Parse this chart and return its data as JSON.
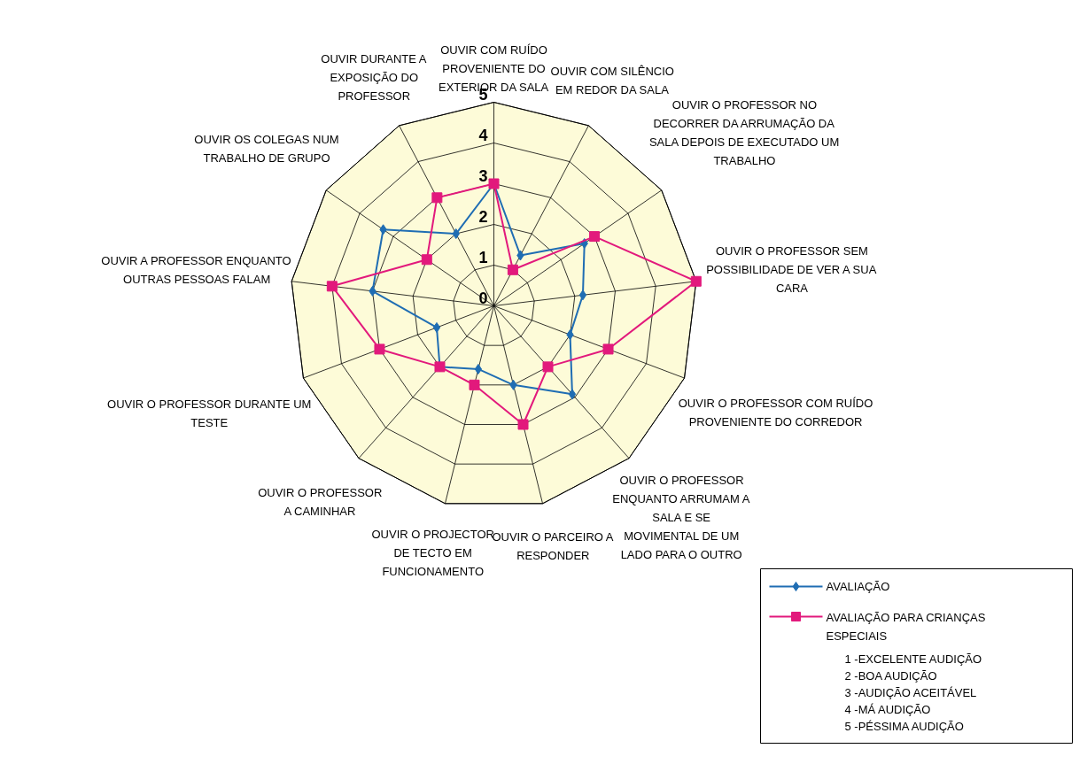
{
  "chart_data": {
    "type": "radar",
    "categories": [
      "OUVIR COM RUÍDO PROVENIENTE DO EXTERIOR DA SALA",
      "OUVIR COM SILÊNCIO EM REDOR DA SALA",
      "OUVIR O PROFESSOR NO DECORRER DA ARRUMAÇÃO DA SALA DEPOIS DE EXECUTADO UM TRABALHO",
      "OUVIR O PROFESSOR SEM POSSIBILIDADE DE VER A SUA CARA",
      "OUVIR O PROFESSOR COM RUÍDO PROVENIENTE DO CORREDOR",
      "OUVIR O PROFESSOR ENQUANTO ARRUMAM A SALA E SE MOVIMENTAL DE UM LADO PARA O OUTRO",
      "OUVIR O PARCEIRO A RESPONDER",
      "OUVIR O PROJECTOR DE TECTO EM FUNCIONAMENTO",
      "OUVIR O PROFESSOR A CAMINHAR",
      "OUVIR O PROFESSOR DURANTE UM TESTE",
      "OUVIR A PROFESSOR ENQUANTO OUTRAS PESSOAS FALAM",
      "OUVIR OS COLEGAS NUM TRABALHO DE GRUPO",
      "OUVIR DURANTE A EXPOSIÇÃO DO PROFESSOR"
    ],
    "series": [
      {
        "name": "AVALIAÇÃO",
        "color": "#1f6db3",
        "marker": "diamond",
        "values": [
          3,
          1.4,
          2.7,
          2.2,
          2,
          2.9,
          2,
          1.6,
          2,
          1.5,
          3,
          3.3,
          2
        ]
      },
      {
        "name": "AVALIAÇÃO PARA CRIANÇAS ESPECIAIS",
        "color": "#e2197c",
        "marker": "square",
        "values": [
          3,
          1,
          3,
          5,
          3,
          2,
          3,
          2,
          2,
          3,
          4,
          2,
          3
        ]
      }
    ],
    "ylim": [
      0,
      5
    ],
    "yticks": [
      0,
      1,
      2,
      3,
      4,
      5
    ],
    "grid": true,
    "legend": "bottom right",
    "annotations": [
      "1 -EXCELENTE AUDIÇÃO",
      "2 -BOA AUDIÇÃO",
      "3 -AUDIÇÃO ACEITÁVEL",
      "4 -MÁ AUDIÇÃO",
      "5 -PÉSSIMA AUDIÇÃO"
    ]
  }
}
